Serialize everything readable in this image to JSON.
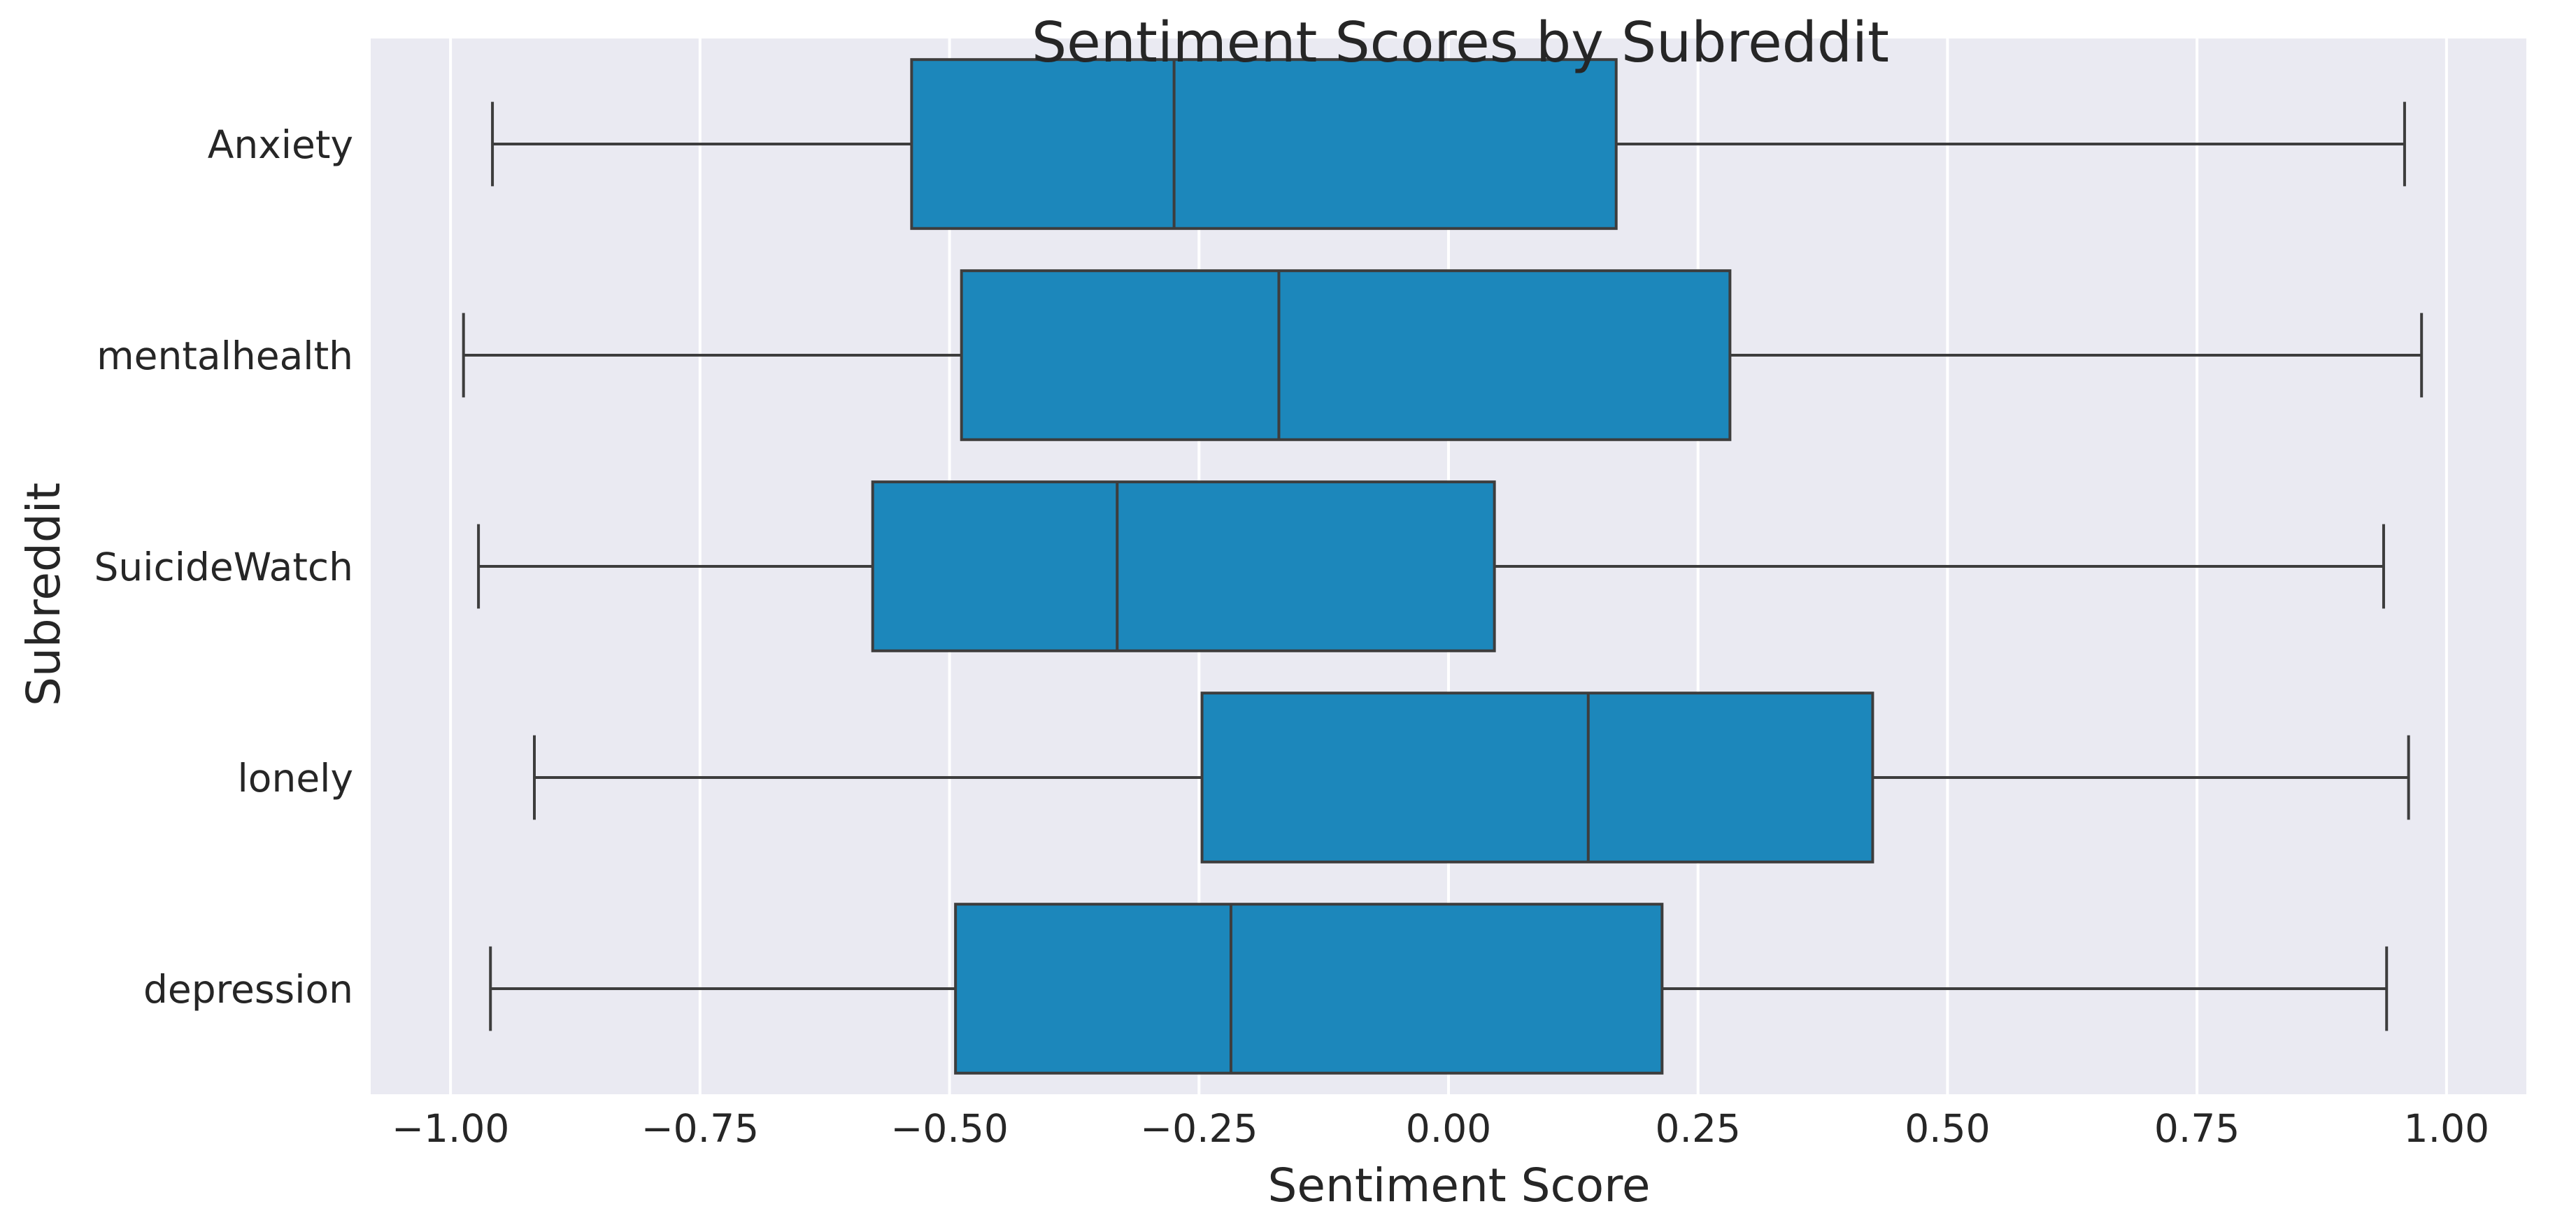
{
  "chart_data": {
    "type": "boxplot",
    "orientation": "horizontal",
    "title": "Sentiment Scores by Subreddit",
    "xlabel": "Sentiment Score",
    "ylabel": "Subreddit",
    "xlim": [
      -1.08,
      1.08
    ],
    "x_ticks": [
      -1.0,
      -0.75,
      -0.5,
      -0.25,
      0.0,
      0.25,
      0.5,
      0.75,
      1.0
    ],
    "x_tick_labels": [
      "−1.00",
      "−0.75",
      "−0.50",
      "−0.25",
      "0.00",
      "0.25",
      "0.50",
      "0.75",
      "1.00"
    ],
    "grid": "x-major",
    "categories": [
      "Anxiety",
      "mentalhealth",
      "SuicideWatch",
      "lonely",
      "depression"
    ],
    "boxes": [
      {
        "category": "Anxiety",
        "whisker_low": -0.958,
        "q1": -0.538,
        "median": -0.275,
        "q3": 0.168,
        "whisker_high": 0.958
      },
      {
        "category": "mentalhealth",
        "whisker_low": -0.987,
        "q1": -0.488,
        "median": -0.17,
        "q3": 0.282,
        "whisker_high": 0.975
      },
      {
        "category": "SuicideWatch",
        "whisker_low": -0.972,
        "q1": -0.577,
        "median": -0.332,
        "q3": 0.046,
        "whisker_high": 0.937
      },
      {
        "category": "lonely",
        "whisker_low": -0.916,
        "q1": -0.247,
        "median": 0.14,
        "q3": 0.425,
        "whisker_high": 0.962
      },
      {
        "category": "depression",
        "whisker_low": -0.96,
        "q1": -0.494,
        "median": -0.218,
        "q3": 0.214,
        "whisker_high": 0.94
      }
    ],
    "colors": {
      "box_fill": "#1c87bb",
      "line": "#3d3d3d",
      "plot_bg": "#eaeaf2",
      "grid": "#ffffff"
    }
  }
}
